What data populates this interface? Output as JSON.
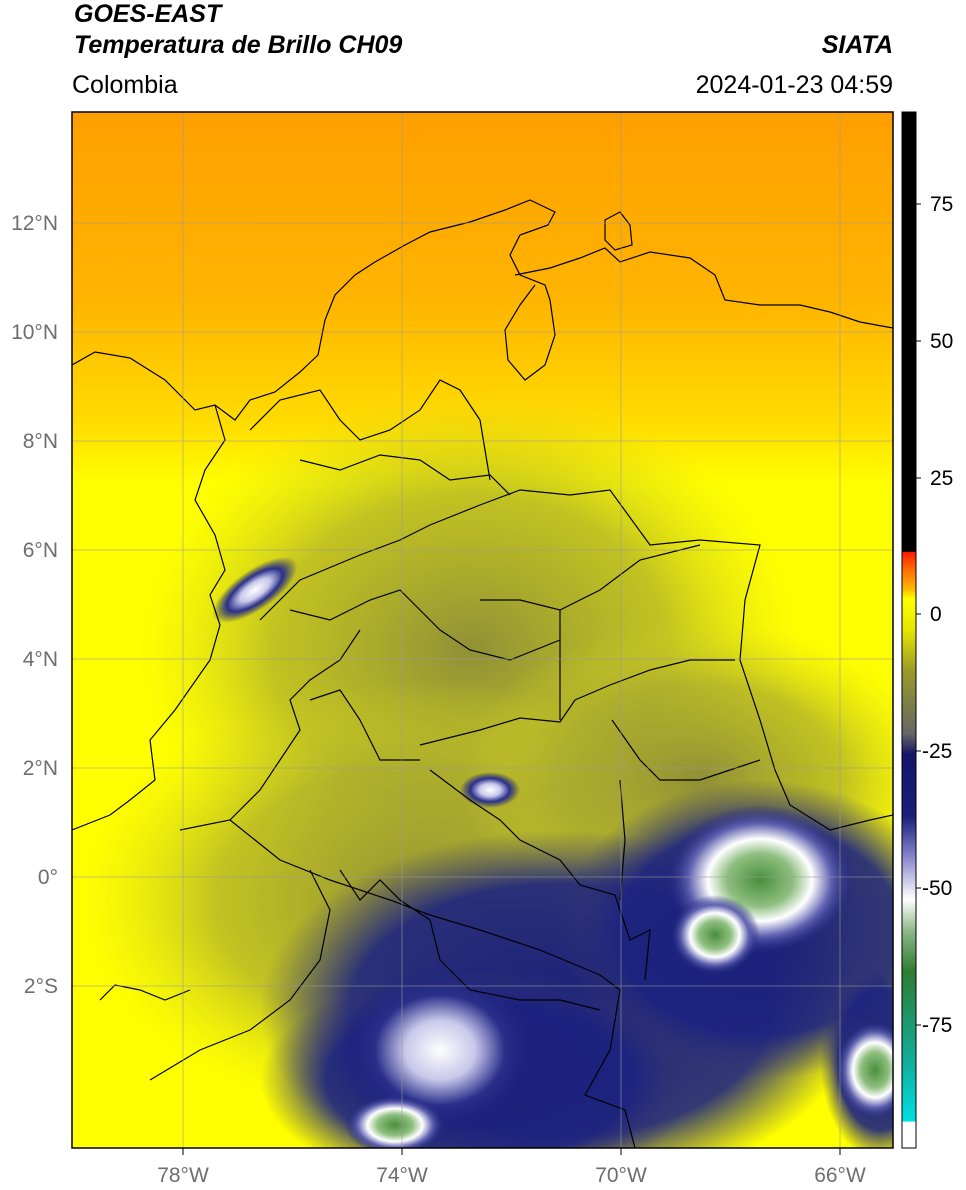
{
  "header": {
    "satellite": "GOES-EAST",
    "product": "Temperatura de Brillo CH09",
    "region": "Colombia",
    "agency": "SIATA",
    "timestamp": "2024-01-23 04:59"
  },
  "axes": {
    "lon_ticks": [
      "78°W",
      "74°W",
      "70°W",
      "66°W"
    ],
    "lat_ticks": [
      "12°N",
      "10°N",
      "8°N",
      "6°N",
      "4°N",
      "2°N",
      "0°",
      "2°S"
    ]
  },
  "colorbar": {
    "ticks": [
      "75",
      "50",
      "25",
      "0",
      "-25",
      "-50",
      "-75"
    ]
  },
  "colors": {
    "warm_orange": "#ff9f00",
    "yellow": "#ffff00",
    "olive": "#9a9a2a",
    "navy": "#1a1f7a",
    "white": "#ffffff",
    "green": "#3d8a32",
    "red": "#ff1a00",
    "cyan": "#00d8d8",
    "black": "#000000"
  }
}
